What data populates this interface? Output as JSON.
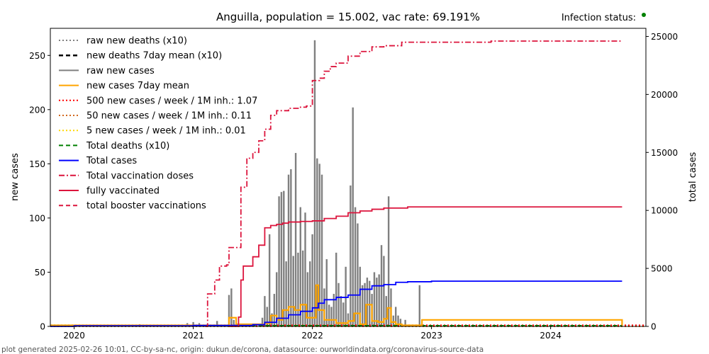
{
  "chart_data": {
    "type": "bar",
    "title": "Anguilla, population = 15.002, vac rate: 69.191%",
    "status_label": "Infection status:",
    "status_color": "#008000",
    "ylabel_left": "new cases",
    "ylabel_right": "total cases",
    "footer": "plot generated 2025-02-26 10:01, CC-by-sa-nc, origin: dukun.de/corona, datasource: ourworldindata.org/coronavirus-source-data",
    "x_range": [
      2019.8,
      2024.8
    ],
    "ylim_left": [
      0,
      275
    ],
    "ylim_right": [
      0,
      25700
    ],
    "x_ticks": [
      {
        "v": 2020,
        "label": "2020"
      },
      {
        "v": 2021,
        "label": "2021"
      },
      {
        "v": 2022,
        "label": "2022"
      },
      {
        "v": 2023,
        "label": "2023"
      },
      {
        "v": 2024,
        "label": "2024"
      }
    ],
    "y_ticks_left": [
      {
        "v": 0,
        "label": "0"
      },
      {
        "v": 50,
        "label": "50"
      },
      {
        "v": 100,
        "label": "100"
      },
      {
        "v": 150,
        "label": "150"
      },
      {
        "v": 200,
        "label": "200"
      },
      {
        "v": 250,
        "label": "250"
      }
    ],
    "y_ticks_right": [
      {
        "v": 0,
        "label": "0"
      },
      {
        "v": 5000,
        "label": "5000"
      },
      {
        "v": 10000,
        "label": "10000"
      },
      {
        "v": 15000,
        "label": "15000"
      },
      {
        "v": 20000,
        "label": "20000"
      },
      {
        "v": 25000,
        "label": "25000"
      }
    ],
    "legend_position": "top-left",
    "legend": [
      {
        "label": "raw new deaths (x10)",
        "color": "#808080",
        "style": "dotted"
      },
      {
        "label": "new deaths 7day mean (x10)",
        "color": "#000000",
        "style": "dashed"
      },
      {
        "label": "raw new cases",
        "color": "#808080",
        "style": "solid"
      },
      {
        "label": "new cases 7day mean",
        "color": "#FFA500",
        "style": "solid"
      },
      {
        "label": "500 new cases / week / 1M inh.: 1.07",
        "color": "#FF0000",
        "style": "dotted"
      },
      {
        "label": "50 new cases / week / 1M inh.: 0.11",
        "color": "#D2691E",
        "style": "dotted"
      },
      {
        "label": "5 new cases / week / 1M inh.: 0.01",
        "color": "#FFD700",
        "style": "dotted"
      },
      {
        "label": "Total deaths (x10)",
        "color": "#008000",
        "style": "dashed"
      },
      {
        "label": "Total cases",
        "color": "#0000FF",
        "style": "solid"
      },
      {
        "label": "Total vaccination doses",
        "color": "#DC143C",
        "style": "dashdot"
      },
      {
        "label": "fully vaccinated",
        "color": "#DC143C",
        "style": "solid"
      },
      {
        "label": "total booster vaccinations",
        "color": "#DC143C",
        "style": "dashed"
      }
    ],
    "thresholds": [
      1.07,
      0.11,
      0.01
    ],
    "raw_new_cases": {
      "x": [
        2020.55,
        2020.95,
        2021.0,
        2021.05,
        2021.2,
        2021.3,
        2021.32,
        2021.34,
        2021.58,
        2021.6,
        2021.62,
        2021.64,
        2021.66,
        2021.68,
        2021.7,
        2021.72,
        2021.74,
        2021.76,
        2021.78,
        2021.8,
        2021.82,
        2021.84,
        2021.86,
        2021.88,
        2021.9,
        2021.92,
        2021.94,
        2021.96,
        2021.98,
        2022.0,
        2022.02,
        2022.04,
        2022.06,
        2022.08,
        2022.1,
        2022.12,
        2022.14,
        2022.16,
        2022.18,
        2022.2,
        2022.22,
        2022.24,
        2022.26,
        2022.28,
        2022.3,
        2022.32,
        2022.34,
        2022.36,
        2022.38,
        2022.4,
        2022.42,
        2022.44,
        2022.46,
        2022.48,
        2022.5,
        2022.52,
        2022.54,
        2022.56,
        2022.58,
        2022.6,
        2022.62,
        2022.64,
        2022.66,
        2022.68,
        2022.7,
        2022.72,
        2022.74,
        2022.78,
        2022.9
      ],
      "y": [
        2,
        3,
        4,
        3,
        5,
        29,
        35,
        6,
        8,
        28,
        18,
        85,
        12,
        30,
        50,
        120,
        124,
        125,
        60,
        140,
        145,
        65,
        160,
        68,
        110,
        70,
        105,
        50,
        60,
        85,
        264,
        155,
        150,
        140,
        35,
        62,
        20,
        18,
        30,
        68,
        40,
        28,
        22,
        55,
        12,
        130,
        202,
        110,
        95,
        55,
        38,
        40,
        45,
        42,
        30,
        50,
        45,
        48,
        75,
        65,
        28,
        120,
        35,
        10,
        18,
        10,
        7,
        6,
        38
      ]
    },
    "new_cases_7day_mean": {
      "x": [
        2019.8,
        2021.25,
        2021.3,
        2021.33,
        2021.36,
        2021.6,
        2021.65,
        2021.7,
        2021.75,
        2021.8,
        2021.85,
        2021.9,
        2021.95,
        2022.0,
        2022.03,
        2022.05,
        2022.1,
        2022.2,
        2022.3,
        2022.35,
        2022.4,
        2022.45,
        2022.5,
        2022.55,
        2022.6,
        2022.63,
        2022.66,
        2022.7,
        2022.75,
        2022.9,
        2022.92,
        2024.6
      ],
      "y": [
        1,
        1,
        8,
        8,
        2,
        3,
        10,
        6,
        15,
        18,
        15,
        20,
        8,
        8,
        38,
        15,
        6,
        3,
        5,
        12,
        2,
        20,
        5,
        4,
        7,
        17,
        4,
        2,
        1,
        1,
        6,
        1
      ]
    },
    "total_cases": {
      "x": [
        2019.8,
        2020.0,
        2021.0,
        2021.5,
        2021.6,
        2021.7,
        2021.8,
        2021.9,
        2022.0,
        2022.05,
        2022.1,
        2022.2,
        2022.3,
        2022.4,
        2022.5,
        2022.6,
        2022.7,
        2022.8,
        2023.0,
        2024.6
      ],
      "y": [
        0,
        50,
        80,
        150,
        350,
        700,
        1000,
        1300,
        1600,
        2000,
        2300,
        2500,
        2700,
        3200,
        3500,
        3600,
        3800,
        3850,
        3900,
        3900
      ]
    },
    "total_vaccination_doses": {
      "x": [
        2021.1,
        2021.12,
        2021.18,
        2021.22,
        2021.28,
        2021.3,
        2021.35,
        2021.4,
        2021.45,
        2021.5,
        2021.55,
        2021.6,
        2021.65,
        2021.7,
        2021.8,
        2021.9,
        2021.95,
        2022.0,
        2022.02,
        2022.06,
        2022.1,
        2022.15,
        2022.2,
        2022.3,
        2022.4,
        2022.5,
        2022.6,
        2022.75,
        2023.0,
        2023.5,
        2024.6
      ],
      "y": [
        0,
        2800,
        4000,
        5200,
        5300,
        6800,
        6800,
        12000,
        14500,
        15000,
        16000,
        17000,
        18200,
        18600,
        18800,
        18900,
        19000,
        21200,
        21200,
        21400,
        22000,
        22400,
        22700,
        23300,
        23700,
        24100,
        24200,
        24500,
        24500,
        24600,
        24600
      ]
    },
    "fully_vaccinated": {
      "x": [
        2021.3,
        2021.38,
        2021.4,
        2021.42,
        2021.5,
        2021.55,
        2021.6,
        2021.65,
        2021.7,
        2021.75,
        2021.8,
        2021.9,
        2022.0,
        2022.1,
        2022.2,
        2022.3,
        2022.4,
        2022.5,
        2022.6,
        2022.8,
        2023.0,
        2024.6
      ],
      "y": [
        0,
        800,
        4000,
        5200,
        6000,
        7000,
        8500,
        8700,
        8800,
        8900,
        9000,
        9050,
        9100,
        9300,
        9500,
        9800,
        9950,
        10100,
        10200,
        10300,
        10300,
        10300
      ]
    },
    "total_deaths_x10": {
      "value": 0
    },
    "total_booster_vaccinations": {
      "value": 0
    }
  }
}
